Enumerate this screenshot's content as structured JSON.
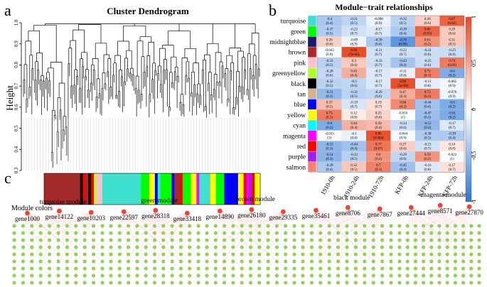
{
  "panel_a": {
    "letter": "a",
    "title": "Cluster Dendrogram",
    "ylabel": "Height",
    "ylim": [
      0.3,
      1.0
    ],
    "yticks": [
      "0.3",
      "0.4",
      "0.5",
      "0.6",
      "0.7",
      "0.8",
      "0.9",
      "1.0"
    ],
    "module_colors_label": "Module colors",
    "color_bar": [
      {
        "color": "#a52a2a",
        "w": 13
      },
      {
        "color": "#000000",
        "w": 1
      },
      {
        "color": "#ff0000",
        "w": 1
      },
      {
        "color": "#a52a2a",
        "w": 1
      },
      {
        "color": "#000000",
        "w": 1
      },
      {
        "color": "#ff0000",
        "w": 1
      },
      {
        "color": "#adff2f",
        "w": 1
      },
      {
        "color": "#ffc0cb",
        "w": 2
      },
      {
        "color": "#40e0d0",
        "w": 14
      },
      {
        "color": "#00ff00",
        "w": 3
      },
      {
        "color": "#ffff00",
        "w": 2
      },
      {
        "color": "#0000ff",
        "w": 1
      },
      {
        "color": "#40e0d0",
        "w": 1
      },
      {
        "color": "#00ff00",
        "w": 4
      },
      {
        "color": "#0000ff",
        "w": 1
      },
      {
        "color": "#a52a2a",
        "w": 2
      },
      {
        "color": "#ff0000",
        "w": 1
      },
      {
        "color": "#00ff00",
        "w": 3
      },
      {
        "color": "#ffff00",
        "w": 2
      },
      {
        "color": "#ff00ff",
        "w": 1
      },
      {
        "color": "#40e0d0",
        "w": 4
      },
      {
        "color": "#ffff00",
        "w": 2
      },
      {
        "color": "#00ff00",
        "w": 3
      },
      {
        "color": "#0000ff",
        "w": 5
      },
      {
        "color": "#ffff00",
        "w": 2
      },
      {
        "color": "#ff0000",
        "w": 1
      },
      {
        "color": "#ff00ff",
        "w": 1
      },
      {
        "color": "#a020f0",
        "w": 1
      },
      {
        "color": "#ff0000",
        "w": 1
      },
      {
        "color": "#ffff00",
        "w": 2
      }
    ]
  },
  "panel_b": {
    "letter": "b",
    "title": "Module−trait relationships",
    "colorbar_ticks": [
      "1",
      "0.5",
      "0",
      "-0.5",
      "-1"
    ],
    "columns": [
      "1910-0h",
      "1910-24h",
      "1910-72h",
      "KFP-0h",
      "KFP-24h",
      "KFP-72h"
    ],
    "rows": [
      {
        "name": "turquoise",
        "color": "#40e0d0",
        "cells": [
          [
            "-0.4",
            "(0.4)"
          ],
          [
            "-0.31",
            "(0.5)"
          ],
          [
            "-0.098",
            "(0.9)"
          ],
          [
            "-0.32",
            "(0.5)"
          ],
          [
            "0.26",
            "(0.6)"
          ],
          [
            "0.87",
            "(0.02)"
          ]
        ]
      },
      {
        "name": "green",
        "color": "#00ff00",
        "cells": [
          [
            "-0.37",
            "(0.5)"
          ],
          [
            "-0.22",
            "(0.7)"
          ],
          [
            "-0.17",
            "(0.7)"
          ],
          [
            "-0.39",
            "(0.4)"
          ],
          [
            "0.86",
            "(0.03)"
          ],
          [
            "0.29",
            "(0.6)"
          ]
        ]
      },
      {
        "name": "midnightblue",
        "color": "#191970",
        "cells": [
          [
            "0.26",
            "(0.6)"
          ],
          [
            "-0.09",
            "(0.9)"
          ],
          [
            "-0.39",
            "(0.4)"
          ],
          [
            "-0.76",
            "(0.08)"
          ],
          [
            "0.61",
            "(0.2)"
          ],
          [
            "0.31",
            "(0.5)"
          ]
        ]
      },
      {
        "name": "brown",
        "color": "#a52a2a",
        "cells": [
          [
            "-0.043",
            "(0.9)"
          ],
          [
            "0.99",
            "(7e-05)"
          ],
          [
            "-0.21",
            "(0.7)"
          ],
          [
            "-0.22",
            "(0.7)"
          ],
          [
            "-0.24",
            "(0.6)"
          ],
          [
            "-0.25",
            "(0.6)"
          ]
        ]
      },
      {
        "name": "pink",
        "color": "#ffc0cb",
        "cells": [
          [
            "-0.33",
            "(0.5)"
          ],
          [
            "0.3",
            "(0.6)"
          ],
          [
            "-0.23",
            "(0.7)"
          ],
          [
            "-0.43",
            "(0.4)"
          ],
          [
            "-0.25",
            "(0.6)"
          ],
          [
            "0.74",
            "(0.09)"
          ]
        ]
      },
      {
        "name": "greenyellow",
        "color": "#adff2f",
        "cells": [
          [
            "-0.28",
            "(0.6)"
          ],
          [
            "0.45",
            "(0.4)"
          ],
          [
            "-0.17",
            "(0.7)"
          ],
          [
            "-0.11",
            "(0.8)"
          ],
          [
            "0.72",
            "(0.1)"
          ],
          [
            "-0.6",
            "(0.2)"
          ]
        ]
      },
      {
        "name": "black",
        "color": "#000000",
        "cells": [
          [
            "-0.32",
            "(0.5)"
          ],
          [
            "-0.3",
            "(0.6)"
          ],
          [
            "-0.17",
            "(0.7)"
          ],
          [
            "0.98",
            "(5e-04)"
          ],
          [
            "-0.12",
            "(0.8)"
          ],
          [
            "-0.065",
            "(0.9)"
          ]
        ]
      },
      {
        "name": "tan",
        "color": "#d2b48c",
        "cells": [
          [
            "-0.51",
            "(0.3)"
          ],
          [
            "-0.32",
            "(0.5)"
          ],
          [
            "-0.29",
            "(0.6)"
          ],
          [
            "0.47",
            "(0.3)"
          ],
          [
            "0.73",
            "(0.1)"
          ],
          [
            "-0.076",
            "(0.9)"
          ]
        ]
      },
      {
        "name": "blue",
        "color": "#0000ff",
        "cells": [
          [
            "0.37",
            "(0.5)"
          ],
          [
            "-0.19",
            "(0.7)"
          ],
          [
            "0.19",
            "(0.7)"
          ],
          [
            "0.66",
            "(0.2)"
          ],
          [
            "-0.44",
            "(0.4)"
          ],
          [
            "-0.6",
            "(0.2)"
          ]
        ]
      },
      {
        "name": "yellow",
        "color": "#ffff00",
        "cells": [
          [
            "0.73",
            "(0.1)"
          ],
          [
            "0.12",
            "(0.8)"
          ],
          [
            "0.25",
            "(0.6)"
          ],
          [
            "-0.016",
            "(1)"
          ],
          [
            "-0.47",
            "(0.3)"
          ],
          [
            "-0.61",
            "(0.2)"
          ]
        ]
      },
      {
        "name": "cyan",
        "color": "#00ffff",
        "cells": [
          [
            "-0.6",
            "(0.2)"
          ],
          [
            "0.44",
            "(0.4)"
          ],
          [
            "0.39",
            "(0.4)"
          ],
          [
            "-0.24",
            "(0.6)"
          ],
          [
            "-0.52",
            "(0.3)"
          ],
          [
            "-0.17",
            "(0.7)"
          ]
        ]
      },
      {
        "name": "magenta",
        "color": "#ff00ff",
        "cells": [
          [
            "-0.033",
            "(1)"
          ],
          [
            "-0.1",
            "(0.8)"
          ],
          [
            "0.96",
            "(0.004)"
          ],
          [
            "-0.044",
            "(0.9)"
          ],
          [
            "-0.38",
            "(0.5)"
          ],
          [
            "-0.39",
            "(0.4)"
          ]
        ]
      },
      {
        "name": "red",
        "color": "#ff0000",
        "cells": [
          [
            "-0.53",
            "(0.3)"
          ],
          [
            "-0.44",
            "(0.4)"
          ],
          [
            "0.77",
            "(0.07)"
          ],
          [
            "0.27",
            "(0.6)"
          ],
          [
            "-0.21",
            "(0.7)"
          ],
          [
            "0.14",
            "(0.8)"
          ]
        ]
      },
      {
        "name": "purple",
        "color": "#a020f0",
        "cells": [
          [
            "-0.54",
            "(0.3)"
          ],
          [
            "-0.33",
            "(0.5)"
          ],
          [
            "0.6",
            "(0.2)"
          ],
          [
            "-0.29",
            "(0.6)"
          ],
          [
            "0.59",
            "(0.2)"
          ],
          [
            "-0.022",
            "(1)"
          ]
        ]
      },
      {
        "name": "salmon",
        "color": "#fa8072",
        "cells": [
          [
            "-0.39",
            "(0.4)"
          ],
          [
            "0.32",
            "(0.5)"
          ],
          [
            "0.7",
            "(0.1)"
          ],
          [
            "-0.45",
            "(0.4)"
          ],
          [
            "-0.16",
            "(0.8)"
          ],
          [
            "0.17",
            "(0.7)"
          ]
        ]
      }
    ]
  },
  "panel_c": {
    "letter": "c",
    "modules": [
      {
        "title": "turquoise module",
        "genes": [
          "gene1000",
          "gene14122",
          "gene10203"
        ]
      },
      {
        "title": "green module",
        "genes": [
          "gene22597",
          "gene28318",
          "gene33418"
        ]
      },
      {
        "title": "brown module",
        "genes": [
          "gene14890",
          "gene26180",
          "gene29335"
        ]
      },
      {
        "title": "black module",
        "genes": [
          "gene35461",
          "gene8706",
          "gene7867"
        ]
      },
      {
        "title": "magenta module",
        "genes": [
          "gene27444",
          "gene8571",
          "gene27870"
        ]
      }
    ]
  }
}
